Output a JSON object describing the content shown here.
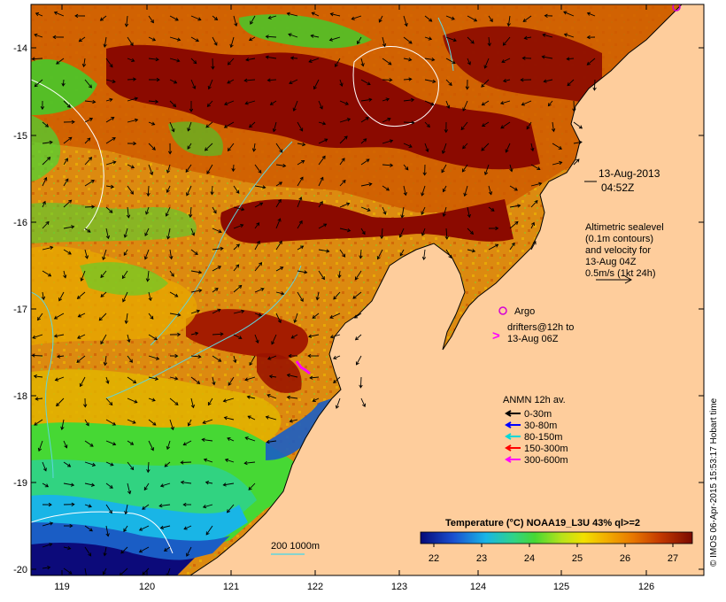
{
  "map": {
    "lon_ticks": [
      "119",
      "120",
      "121",
      "122",
      "123",
      "124",
      "125",
      "126"
    ],
    "lat_ticks": [
      "-14",
      "-15",
      "-16",
      "-17",
      "-18",
      "-19",
      "-20"
    ],
    "colors": {
      "land": "#fecd9c",
      "sst_hot": "#8b0a00",
      "sst_warm": "#cf5a00",
      "sst_mid": "#e7a600",
      "sst_cool": "#3fcf2d",
      "sst_cold": "#1a5dc5",
      "sst_coldest": "#0c0a7a",
      "contour": "#ffffff",
      "isobath": "#5fd6df",
      "argo": "#d400d4",
      "drifter": "#ff00ff"
    }
  },
  "annotations": {
    "date": "13-Aug-2013",
    "time": "04:52Z",
    "altimetry": [
      "Altimetric sealevel",
      "(0.1m contours)",
      "and velocity for",
      "13-Aug 04Z",
      "0.5m/s (1kt 24h)"
    ],
    "argo_label": "Argo",
    "drifters": [
      "drifters@12h to",
      "13-Aug 06Z"
    ],
    "anmn_title": "ANMN 12h av.",
    "anmn_legend": [
      {
        "label": "0-30m",
        "color": "#000000"
      },
      {
        "label": "30-80m",
        "color": "#0000ff"
      },
      {
        "label": "80-150m",
        "color": "#00d8d8"
      },
      {
        "label": "150-300m",
        "color": "#ff0000"
      },
      {
        "label": "300-600m",
        "color": "#ff00ff"
      }
    ],
    "isobath_label": "200  1000m"
  },
  "colorbar": {
    "title": "Temperature (°C) NOAA19_L3U 43% ql>=2",
    "ticks": [
      "22",
      "23",
      "24",
      "25",
      "26",
      "27"
    ]
  },
  "credit": "© IMOS 06-Apr-2015 15:53:17 Hobart time"
}
